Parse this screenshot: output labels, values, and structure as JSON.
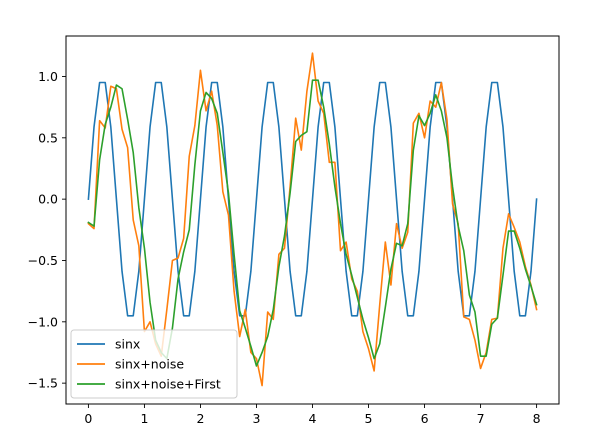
{
  "chart_data": {
    "type": "line",
    "title": "",
    "xlabel": "",
    "ylabel": "",
    "xlim": [
      -0.4,
      8.4
    ],
    "ylim": [
      -1.67,
      1.33
    ],
    "xticks": [
      0,
      1,
      2,
      3,
      4,
      5,
      6,
      7,
      8
    ],
    "xtick_labels": [
      "0",
      "1",
      "2",
      "3",
      "4",
      "5",
      "6",
      "7",
      "8"
    ],
    "yticks": [
      -1.5,
      -1.0,
      -0.5,
      0.0,
      0.5,
      1.0
    ],
    "ytick_labels": [
      "−1.5",
      "−1.0",
      "−0.5",
      "0.0",
      "0.5",
      "1.0"
    ],
    "grid": false,
    "legend_position": "lower-left",
    "x": [
      0,
      0.1,
      0.2,
      0.3,
      0.4,
      0.5,
      0.6,
      0.7,
      0.8,
      0.9,
      1.0,
      1.1,
      1.2,
      1.3,
      1.4,
      1.5,
      1.6,
      1.7,
      1.8,
      1.9,
      2.0,
      2.1,
      2.2,
      2.3,
      2.4,
      2.5,
      2.6,
      2.7,
      2.8,
      2.9,
      3.0,
      3.1,
      3.2,
      3.3,
      3.4,
      3.5,
      3.6,
      3.7,
      3.8,
      3.9,
      4.0,
      4.1,
      4.2,
      4.3,
      4.4,
      4.5,
      4.6,
      4.7,
      4.8,
      4.9,
      5.0,
      5.1,
      5.2,
      5.3,
      5.4,
      5.5,
      5.6,
      5.7,
      5.8,
      5.9,
      6.0,
      6.1,
      6.2,
      6.3,
      6.4,
      6.5,
      6.6,
      6.7,
      6.8,
      6.9,
      7.0,
      7.1,
      7.2,
      7.3,
      7.4,
      7.5,
      7.6,
      7.7,
      7.8,
      7.9,
      8.0
    ],
    "series": [
      {
        "name": "sinx",
        "color": "#1f77b4",
        "values": [
          0.0,
          0.588,
          0.951,
          0.951,
          0.588,
          0.0,
          -0.588,
          -0.951,
          -0.951,
          -0.588,
          0.0,
          0.588,
          0.951,
          0.951,
          0.588,
          0.0,
          -0.588,
          -0.951,
          -0.951,
          -0.588,
          0.0,
          0.588,
          0.951,
          0.951,
          0.588,
          0.0,
          -0.588,
          -0.951,
          -0.951,
          -0.588,
          0.0,
          0.588,
          0.951,
          0.951,
          0.588,
          0.0,
          -0.588,
          -0.951,
          -0.951,
          -0.588,
          0.0,
          0.588,
          0.951,
          0.951,
          0.588,
          0.0,
          -0.588,
          -0.951,
          -0.951,
          -0.588,
          0.0,
          0.588,
          0.951,
          0.951,
          0.588,
          0.0,
          -0.588,
          -0.951,
          -0.951,
          -0.588,
          0.0,
          0.588,
          0.951,
          0.951,
          0.588,
          0.0,
          -0.588,
          -0.951,
          -0.951,
          -0.588,
          0.0,
          0.588,
          0.951,
          0.951,
          0.588,
          0.0,
          -0.588,
          -0.951,
          -0.951,
          -0.588,
          0.0
        ]
      },
      {
        "name": "sinx+noise",
        "color": "#ff7f0e",
        "values": [
          -0.2,
          -0.24,
          0.64,
          0.58,
          0.92,
          0.9,
          0.57,
          0.42,
          -0.17,
          -0.38,
          -1.08,
          -1.0,
          -1.18,
          -1.28,
          -0.9,
          -0.5,
          -0.48,
          -0.32,
          0.35,
          0.6,
          1.05,
          0.72,
          0.88,
          0.6,
          0.06,
          -0.13,
          -0.75,
          -1.12,
          -0.9,
          -1.25,
          -1.3,
          -1.52,
          -0.92,
          -0.98,
          -0.45,
          -0.4,
          0.1,
          0.66,
          0.4,
          0.88,
          1.19,
          0.8,
          0.7,
          0.3,
          0.3,
          -0.42,
          -0.35,
          -0.65,
          -0.75,
          -1.08,
          -1.22,
          -1.4,
          -0.86,
          -0.35,
          -0.7,
          -0.2,
          -0.4,
          -0.27,
          0.62,
          0.7,
          0.5,
          0.8,
          0.75,
          0.95,
          0.65,
          -0.04,
          -0.2,
          -0.96,
          -0.98,
          -1.15,
          -1.38,
          -1.25,
          -0.98,
          -0.97,
          -0.4,
          -0.12,
          -0.23,
          -0.35,
          -0.55,
          -0.7,
          -0.9
        ]
      },
      {
        "name": "sinx+noise+First",
        "color": "#2ca02c",
        "values": [
          -0.19,
          -0.22,
          0.32,
          0.61,
          0.75,
          0.93,
          0.9,
          0.65,
          0.38,
          -0.07,
          -0.4,
          -0.84,
          -1.15,
          -1.25,
          -1.3,
          -1.05,
          -0.65,
          -0.43,
          -0.25,
          0.28,
          0.72,
          0.87,
          0.82,
          0.7,
          0.38,
          0.05,
          -0.45,
          -0.91,
          -1.05,
          -1.2,
          -1.36,
          -1.25,
          -1.12,
          -0.9,
          -0.55,
          -0.3,
          0.05,
          0.47,
          0.52,
          0.55,
          0.97,
          0.97,
          0.75,
          0.45,
          0.1,
          -0.2,
          -0.45,
          -0.62,
          -0.8,
          -0.98,
          -1.13,
          -1.3,
          -1.18,
          -0.88,
          -0.57,
          -0.36,
          -0.38,
          -0.2,
          0.4,
          0.68,
          0.6,
          0.7,
          0.85,
          0.72,
          0.5,
          0.1,
          -0.22,
          -0.42,
          -0.78,
          -0.92,
          -1.28,
          -1.28,
          -1.02,
          -0.97,
          -0.62,
          -0.26,
          -0.26,
          -0.4,
          -0.57,
          -0.71,
          -0.86
        ]
      }
    ]
  }
}
